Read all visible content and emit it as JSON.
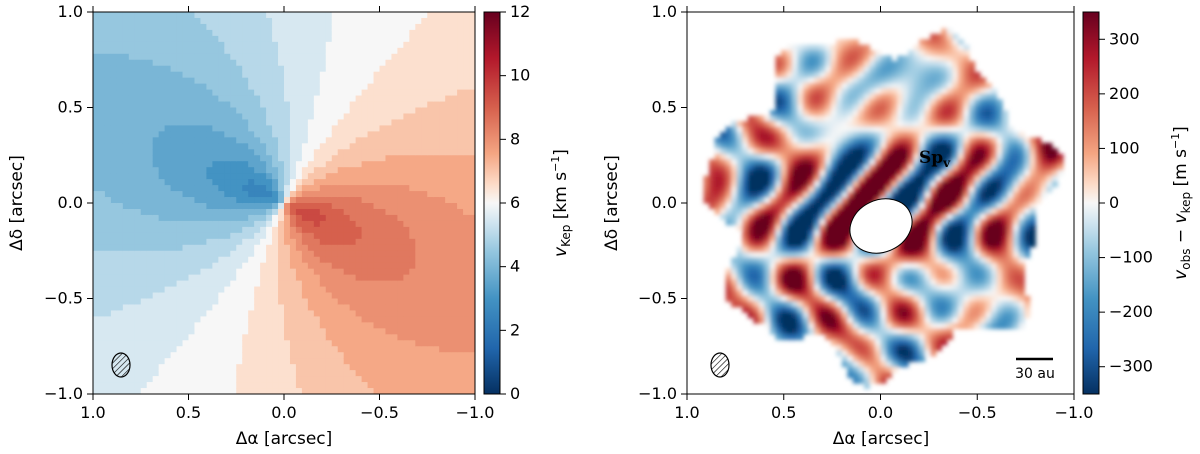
{
  "chart_data": [
    {
      "type": "heatmap",
      "title": "",
      "xlabel": "Δα [arcsec]",
      "ylabel": "Δδ [arcsec]",
      "xlim": [
        1.0,
        -1.0
      ],
      "ylim": [
        -1.0,
        1.0
      ],
      "xticks": [
        1.0,
        0.5,
        0.0,
        -0.5,
        -1.0
      ],
      "xtick_labels": [
        "1.0",
        "0.5",
        "0.0",
        "−0.5",
        "−1.0"
      ],
      "yticks": [
        1.0,
        0.5,
        0.0,
        -0.5,
        -1.0
      ],
      "ytick_labels": [
        "1.0",
        "0.5",
        "0.0",
        "−0.5",
        "−1.0"
      ],
      "colorbar": {
        "label": "v_Kep [km s⁻¹]",
        "label_main": "v",
        "label_sub": "Kep",
        "label_unit": " [km s",
        "label_exp": "−1",
        "label_close": "]",
        "colormap": "RdBu_r",
        "range": [
          0,
          12
        ],
        "ticks": [
          0,
          2,
          4,
          6,
          8,
          10,
          12
        ],
        "tick_labels": [
          "0",
          "2",
          "4",
          "6",
          "8",
          "10",
          "12"
        ]
      },
      "beam": {
        "x": 0.82,
        "y": -0.82
      },
      "annotations": []
    },
    {
      "type": "heatmap",
      "title": "",
      "xlabel": "Δα [arcsec]",
      "ylabel": "Δδ [arcsec]",
      "xlim": [
        1.0,
        -1.0
      ],
      "ylim": [
        -1.0,
        1.0
      ],
      "xticks": [
        1.0,
        0.5,
        0.0,
        -0.5,
        -1.0
      ],
      "xtick_labels": [
        "1.0",
        "0.5",
        "0.0",
        "−0.5",
        "−1.0"
      ],
      "yticks": [
        1.0,
        0.5,
        0.0,
        -0.5,
        -1.0
      ],
      "ytick_labels": [
        "1.0",
        "0.5",
        "0.0",
        "−0.5",
        "−1.0"
      ],
      "colorbar": {
        "label": "v_obs − v_kep [m s⁻¹]",
        "label_main": "v",
        "label_sub": "obs",
        "label_mid": " − v",
        "label_sub2": "kep",
        "label_unit": " [m s",
        "label_exp": "−1",
        "label_close": "]",
        "colormap": "RdBu_r",
        "range": [
          -350,
          350
        ],
        "ticks": [
          -300,
          -200,
          -100,
          0,
          100,
          200,
          300
        ],
        "tick_labels": [
          "−300",
          "−200",
          "−100",
          "0",
          "100",
          "200",
          "300"
        ]
      },
      "beam": {
        "x": 0.82,
        "y": -0.82
      },
      "annotations": [
        {
          "text": "Sp",
          "sub": "v",
          "x": -0.3,
          "y": 0.42
        }
      ],
      "scale_bar": {
        "label": "30 au",
        "x_from": -0.67,
        "x_to": -0.87,
        "y": -0.78
      }
    }
  ]
}
